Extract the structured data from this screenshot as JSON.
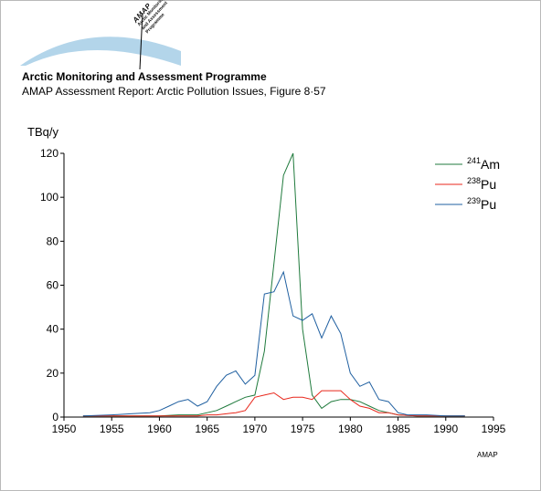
{
  "header": {
    "org": "Arctic Monitoring and Assessment Programme",
    "report": "AMAP Assessment Report: Arctic Pollution Issues, Figure 8·57"
  },
  "logo": {
    "brand": "AMAP",
    "line1": "Arctic Monitoring",
    "line2": "and Assessment",
    "line3": "Programme",
    "color": "#b3d5ea"
  },
  "credit": "AMAP",
  "chart_data": {
    "type": "line",
    "ylabel": "TBq/y",
    "xlabel": "",
    "title": "",
    "xlim": [
      1950,
      1995
    ],
    "ylim": [
      0,
      120
    ],
    "xticks": [
      1950,
      1955,
      1960,
      1965,
      1970,
      1975,
      1980,
      1985,
      1990,
      1995
    ],
    "yticks": [
      0,
      20,
      40,
      60,
      80,
      100,
      120
    ],
    "legend_position": "top-right",
    "grid": false,
    "series": [
      {
        "name": "241Am",
        "label_sup": "241",
        "label_base": "Am",
        "color": "#1f7a3c",
        "x": [
          1952,
          1955,
          1958,
          1960,
          1962,
          1963,
          1964,
          1965,
          1966,
          1967,
          1968,
          1969,
          1970,
          1971,
          1972,
          1973,
          1974,
          1975,
          1976,
          1977,
          1978,
          1979,
          1980,
          1981,
          1982,
          1983,
          1984,
          1985,
          1987,
          1990,
          1992
        ],
        "y": [
          0.5,
          0.5,
          0.5,
          0.5,
          1,
          1,
          1,
          2,
          3,
          5,
          7,
          9,
          10,
          30,
          70,
          110,
          120,
          40,
          10,
          4,
          7,
          8,
          8,
          7,
          5,
          3,
          2,
          1,
          0.5,
          0.5,
          0.5
        ]
      },
      {
        "name": "238Pu",
        "label_sup": "238",
        "label_base": "Pu",
        "color": "#e8271b",
        "x": [
          1952,
          1955,
          1958,
          1960,
          1962,
          1963,
          1964,
          1965,
          1966,
          1967,
          1968,
          1969,
          1970,
          1971,
          1972,
          1973,
          1974,
          1975,
          1976,
          1977,
          1978,
          1979,
          1980,
          1981,
          1982,
          1983,
          1984,
          1985,
          1987,
          1990,
          1992
        ],
        "y": [
          0.5,
          0.5,
          0.5,
          0.5,
          0.5,
          0.5,
          0.5,
          1,
          1,
          1.5,
          2,
          3,
          9,
          10,
          11,
          8,
          9,
          9,
          8,
          12,
          12,
          12,
          8,
          5,
          4,
          2,
          2,
          1,
          0.5,
          0.5,
          0.5
        ]
      },
      {
        "name": "239Pu",
        "label_sup": "239",
        "label_base": "Pu",
        "color": "#1f5fa0",
        "x": [
          1952,
          1955,
          1957,
          1959,
          1960,
          1961,
          1962,
          1963,
          1964,
          1965,
          1966,
          1967,
          1968,
          1969,
          1970,
          1971,
          1972,
          1973,
          1974,
          1975,
          1976,
          1977,
          1978,
          1979,
          1980,
          1981,
          1982,
          1983,
          1984,
          1985,
          1986,
          1988,
          1990,
          1992
        ],
        "y": [
          0.5,
          1,
          1.5,
          2,
          3,
          5,
          7,
          8,
          5,
          7,
          14,
          19,
          21,
          15,
          19,
          56,
          57,
          66,
          46,
          44,
          47,
          36,
          46,
          38,
          20,
          14,
          16,
          8,
          7,
          2,
          1,
          1,
          0.5,
          0.5
        ]
      }
    ]
  }
}
